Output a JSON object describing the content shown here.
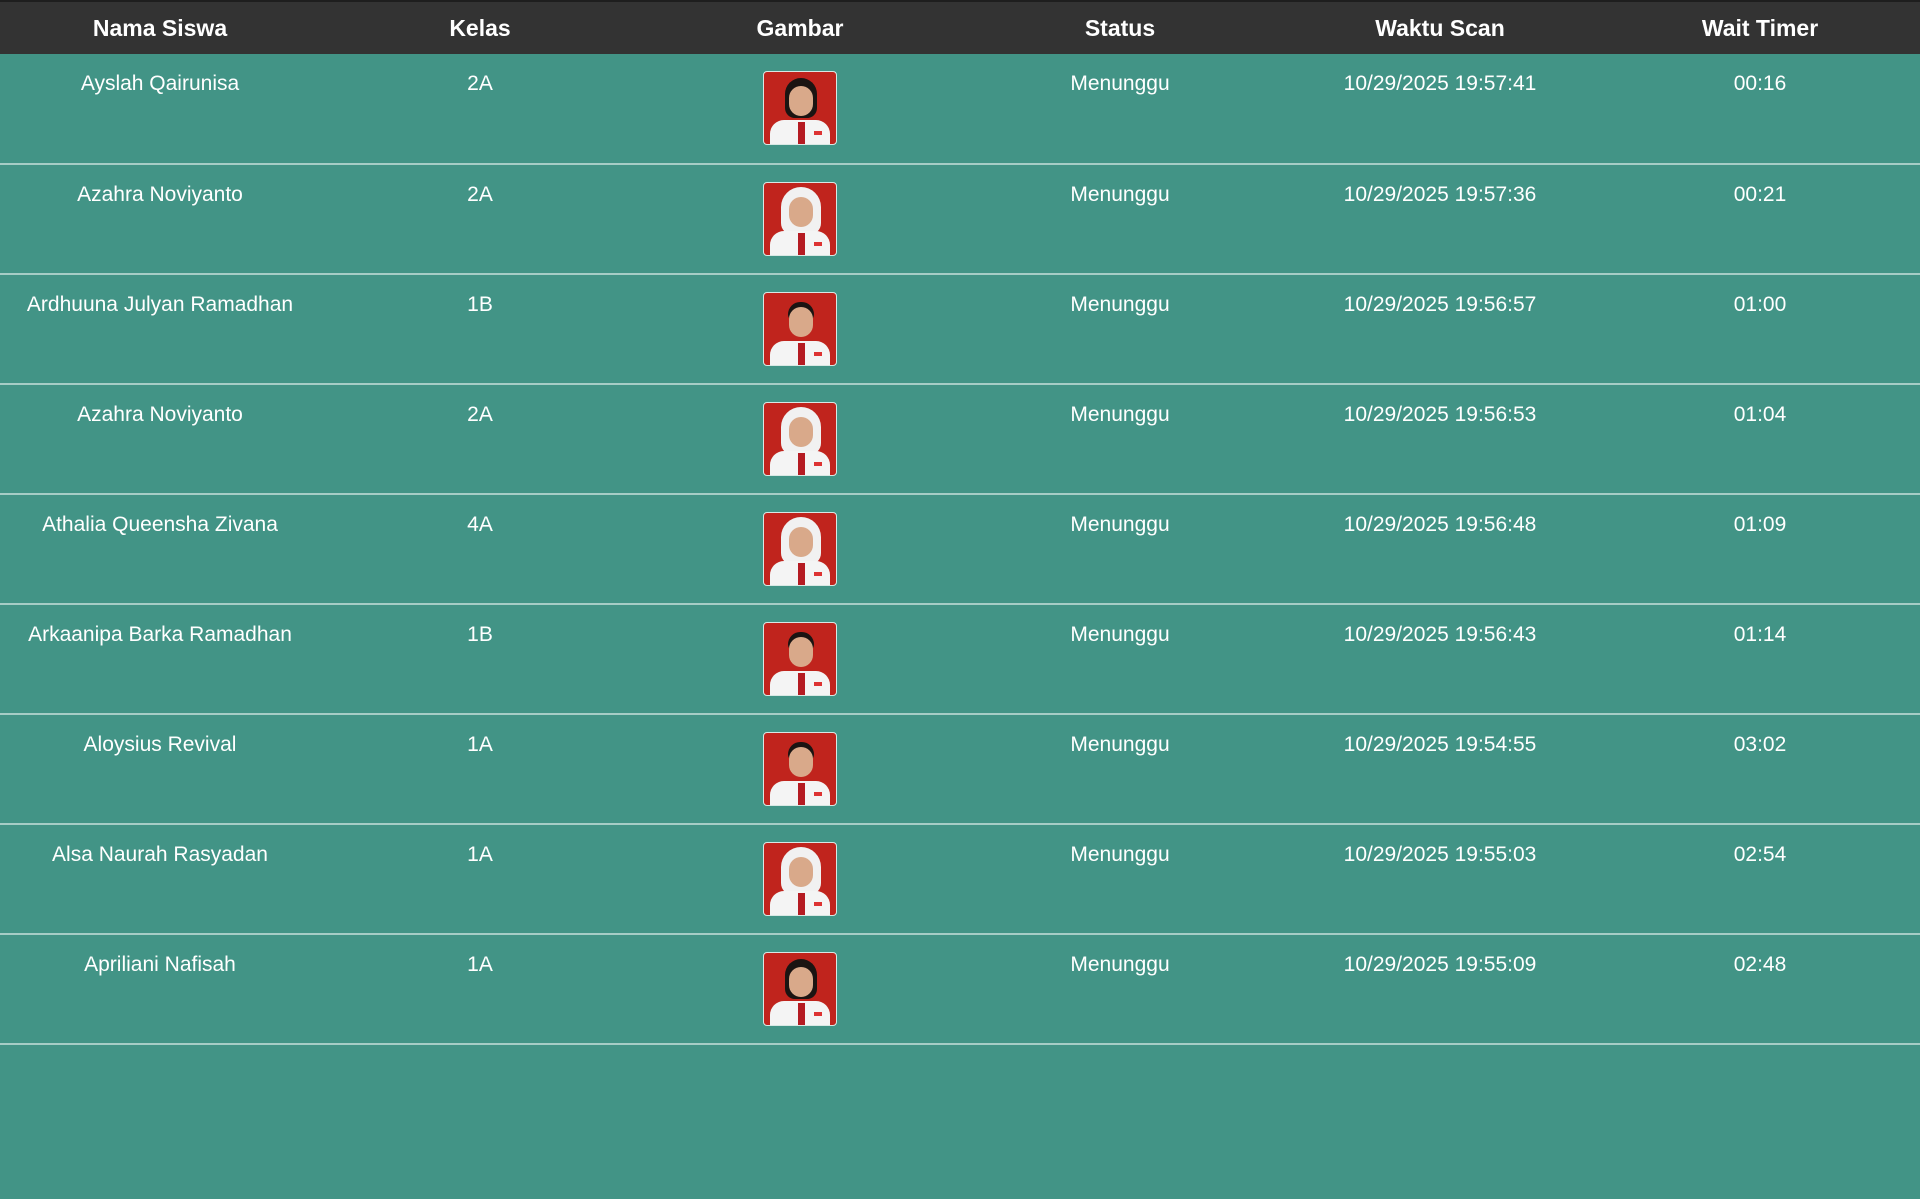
{
  "columns": [
    "Nama Siswa",
    "Kelas",
    "Gambar",
    "Status",
    "Waktu Scan",
    "Wait Timer"
  ],
  "rows": [
    {
      "name": "Ayslah Qairunisa",
      "kelas": "2A",
      "photo": "girl-hair",
      "status": "Menunggu",
      "waktu": "10/29/2025 19:57:41",
      "timer": "00:16"
    },
    {
      "name": "Azahra Noviyanto",
      "kelas": "2A",
      "photo": "girl-hijab",
      "status": "Menunggu",
      "waktu": "10/29/2025 19:57:36",
      "timer": "00:21"
    },
    {
      "name": "Ardhuuna Julyan Ramadhan",
      "kelas": "1B",
      "photo": "boy",
      "status": "Menunggu",
      "waktu": "10/29/2025 19:56:57",
      "timer": "01:00"
    },
    {
      "name": "Azahra Noviyanto",
      "kelas": "2A",
      "photo": "girl-hijab",
      "status": "Menunggu",
      "waktu": "10/29/2025 19:56:53",
      "timer": "01:04"
    },
    {
      "name": "Athalia Queensha Zivana",
      "kelas": "4A",
      "photo": "girl-hijab",
      "status": "Menunggu",
      "waktu": "10/29/2025 19:56:48",
      "timer": "01:09"
    },
    {
      "name": "Arkaanipa Barka Ramadhan",
      "kelas": "1B",
      "photo": "boy",
      "status": "Menunggu",
      "waktu": "10/29/2025 19:56:43",
      "timer": "01:14"
    },
    {
      "name": "Aloysius Revival",
      "kelas": "1A",
      "photo": "boy",
      "status": "Menunggu",
      "waktu": "10/29/2025 19:54:55",
      "timer": "03:02"
    },
    {
      "name": "Alsa Naurah Rasyadan",
      "kelas": "1A",
      "photo": "girl-hijab",
      "status": "Menunggu",
      "waktu": "10/29/2025 19:55:03",
      "timer": "02:54"
    },
    {
      "name": "Apriliani Nafisah",
      "kelas": "1A",
      "photo": "girl-hair",
      "status": "Menunggu",
      "waktu": "10/29/2025 19:55:09",
      "timer": "02:48"
    }
  ],
  "colors": {
    "header_bg": "#333333",
    "body_bg": "#429486",
    "row_border": "#a6cdc6",
    "photo_bg": "#c0241d"
  }
}
